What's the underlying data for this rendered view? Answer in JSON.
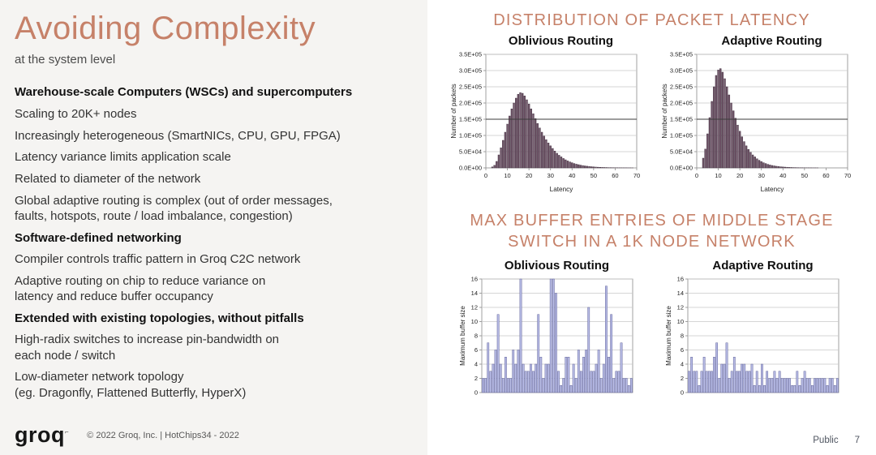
{
  "left": {
    "title": "Avoiding Complexity",
    "subtitle": "at the system level",
    "bullets": [
      {
        "text": "Warehouse-scale Computers (WSCs) and supercomputers",
        "bold": true
      },
      {
        "text": "Scaling to 20K+ nodes",
        "bold": false
      },
      {
        "text": "Increasingly heterogeneous (SmartNICs, CPU, GPU, FPGA)",
        "bold": false
      },
      {
        "text": "Latency variance limits application scale",
        "bold": false
      },
      {
        "text": "Related to diameter of the network",
        "bold": false
      },
      {
        "text": "Global adaptive routing is complex (out of order messages,\nfaults, hotspots, route / load imbalance, congestion)",
        "bold": false
      },
      {
        "text": "Software-defined networking",
        "bold": true
      },
      {
        "text": "Compiler controls traffic pattern in Groq C2C network",
        "bold": false
      },
      {
        "text": "Adaptive routing on chip to reduce variance on\nlatency and reduce buffer occupancy",
        "bold": false
      },
      {
        "text": "Extended with existing topologies, without pitfalls",
        "bold": true
      },
      {
        "text": "High-radix switches to increase pin-bandwidth on\neach node / switch",
        "bold": false
      },
      {
        "text": "Low-diameter network topology\n(eg. Dragonfly, Flattened Butterfly, HyperX)",
        "bold": false
      }
    ],
    "footer": {
      "logo_text": "groq",
      "copyright": "© 2022 Groq, Inc. | HotChips34 - 2022"
    }
  },
  "right": {
    "section1_title": "DISTRIBUTION OF PACKET LATENCY",
    "section2_title": "MAX BUFFER ENTRIES OF MIDDLE STAGE\nSWITCH IN A 1K NODE NETWORK",
    "footer": {
      "classification": "Public",
      "page_number": "7"
    }
  },
  "colors": {
    "accent": "#c68169",
    "left_bg": "#f5f4f2",
    "hist_bar_fill": "#72566a",
    "hist_bar_stroke": "#402f3e",
    "buffer_bar_fill": "#b7bbe5",
    "buffer_bar_stroke": "#63659b",
    "grid": "#c9c9c9",
    "axis": "#8a8a8a",
    "ref_line": "#3b3b3b",
    "tick_text": "#222222"
  },
  "chart_data": [
    {
      "id": "latency-oblivious",
      "type": "bar",
      "title": "Oblivious Routing",
      "xlabel": "Latency",
      "ylabel": "Number of packets",
      "ylim": [
        0,
        350000
      ],
      "ytick_step": 50000,
      "ytick_labels": [
        "0.0E+00",
        "5.0E+04",
        "1.0E+05",
        "1.5E+05",
        "2.0E+05",
        "2.5E+05",
        "3.0E+05",
        "3.5E+05"
      ],
      "xlim": [
        0,
        70
      ],
      "xticks": [
        0,
        10,
        20,
        30,
        40,
        50,
        60,
        70
      ],
      "ref_line": 150000,
      "palette": "hist",
      "x_start": 3,
      "values": [
        3000,
        8000,
        20000,
        40000,
        62000,
        85000,
        110000,
        135000,
        160000,
        182000,
        200000,
        215000,
        227000,
        232000,
        230000,
        222000,
        210000,
        197000,
        182000,
        167000,
        152000,
        137000,
        123000,
        110000,
        98000,
        87000,
        77000,
        68000,
        60000,
        52000,
        45000,
        39000,
        34000,
        29000,
        25000,
        21500,
        18500,
        16000,
        13500,
        11500,
        10000,
        8500,
        7200,
        6100,
        5200,
        4400,
        3700,
        3100,
        2600,
        2200,
        1900,
        1600,
        1300,
        1100,
        900,
        800,
        700,
        600,
        500,
        400,
        400,
        300,
        300,
        200,
        200,
        100
      ]
    },
    {
      "id": "latency-adaptive",
      "type": "bar",
      "title": "Adaptive Routing",
      "xlabel": "Latency",
      "ylabel": "Number of packets",
      "ylim": [
        0,
        350000
      ],
      "ytick_step": 50000,
      "ytick_labels": [
        "0.0E+00",
        "5.0E+04",
        "1.0E+05",
        "1.5E+05",
        "2.0E+05",
        "2.5E+05",
        "3.0E+05",
        "3.5E+05"
      ],
      "xlim": [
        0,
        70
      ],
      "xticks": [
        0,
        10,
        20,
        30,
        40,
        50,
        60,
        70
      ],
      "ref_line": 150000,
      "palette": "hist",
      "x_start": 3,
      "values": [
        30000,
        58000,
        105000,
        155000,
        205000,
        250000,
        285000,
        302000,
        306000,
        295000,
        275000,
        250000,
        225000,
        200000,
        176000,
        153000,
        132000,
        113000,
        96000,
        81000,
        68000,
        57000,
        48000,
        40000,
        34000,
        28000,
        23500,
        19500,
        16000,
        13500,
        11000,
        9000,
        7500,
        6200,
        5100,
        4200,
        3500,
        2900,
        2400,
        2000,
        1600,
        1300,
        1100,
        900,
        750,
        600,
        500,
        400,
        350,
        300,
        250,
        200,
        150,
        100
      ]
    },
    {
      "id": "buffer-oblivious",
      "type": "bar",
      "title": "Oblivious Routing",
      "xlabel": "",
      "ylabel": "Maximum buffer size",
      "ylim": [
        0,
        16
      ],
      "ytick_step": 2,
      "ytick_labels": [
        "0",
        "2",
        "4",
        "6",
        "8",
        "10",
        "12",
        "14",
        "16"
      ],
      "xticks": [],
      "palette": "buffer",
      "values": [
        2,
        2,
        7,
        3,
        4,
        6,
        11,
        4,
        2,
        5,
        2,
        2,
        6,
        4,
        6,
        16,
        4,
        3,
        3,
        4,
        3,
        4,
        11,
        5,
        2,
        4,
        4,
        16,
        16,
        14,
        3,
        1,
        2,
        5,
        5,
        1,
        4,
        2,
        6,
        3,
        5,
        6,
        12,
        3,
        3,
        4,
        6,
        2,
        4,
        15,
        5,
        11,
        2,
        3,
        3,
        7,
        2,
        2,
        1,
        2
      ]
    },
    {
      "id": "buffer-adaptive",
      "type": "bar",
      "title": "Adaptive Routing",
      "xlabel": "",
      "ylabel": "Maximum buffer size",
      "ylim": [
        0,
        16
      ],
      "ytick_step": 2,
      "ytick_labels": [
        "0",
        "2",
        "4",
        "6",
        "8",
        "10",
        "12",
        "14",
        "16"
      ],
      "xticks": [],
      "palette": "buffer",
      "values": [
        3,
        5,
        3,
        3,
        1,
        3,
        5,
        3,
        3,
        3,
        5,
        7,
        2,
        4,
        4,
        7,
        2,
        3,
        5,
        3,
        3,
        4,
        4,
        3,
        3,
        4,
        1,
        3,
        1,
        4,
        1,
        3,
        2,
        2,
        3,
        2,
        3,
        2,
        2,
        2,
        2,
        1,
        1,
        3,
        1,
        2,
        3,
        2,
        2,
        1,
        2,
        2,
        2,
        2,
        2,
        1,
        2,
        2,
        1,
        2
      ]
    }
  ]
}
